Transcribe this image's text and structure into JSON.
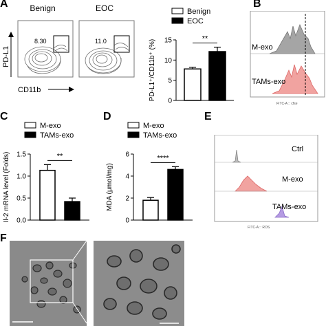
{
  "panels": {
    "A": {
      "label": "A",
      "flow": {
        "benign_title": "Benign",
        "eoc_title": "EOC",
        "benign_pct": "8.30",
        "eoc_pct": "11.0",
        "ylabel": "PD-L1",
        "xlabel": "CD11b"
      }
    },
    "B": {
      "label": "B",
      "row1": "M-exo",
      "row2": "TAMs-exo",
      "axis": "FITC-A :: cfse"
    },
    "C": {
      "label": "C",
      "sig": "**"
    },
    "D": {
      "label": "D",
      "sig": "****"
    },
    "E": {
      "label": "E",
      "rows": [
        "Ctrl",
        "M-exo",
        "TAMs-exo"
      ],
      "axis": "FITC-A :: ROS"
    },
    "F": {
      "label": "F"
    }
  },
  "chart_data": [
    {
      "type": "bar",
      "panel": "A",
      "ylabel": "PD-L1⁺/CD11b⁺ (%)",
      "categories": [
        "Benign",
        "EOC"
      ],
      "values": [
        7.8,
        12.1
      ],
      "errors": [
        0.4,
        1.1
      ],
      "colors": [
        "#ffffff",
        "#000000"
      ],
      "ylim": [
        0,
        15
      ],
      "yticks": [
        "0",
        "5",
        "10",
        "15"
      ],
      "legend": [
        "Benign",
        "EOC"
      ],
      "sig": "**"
    },
    {
      "type": "bar",
      "panel": "C",
      "ylabel": "Il-2 mRNA level (Folds)",
      "categories": [
        "M-exo",
        "TAMs-exo"
      ],
      "values": [
        1.13,
        0.42
      ],
      "errors": [
        0.13,
        0.08
      ],
      "colors": [
        "#ffffff",
        "#000000"
      ],
      "ylim": [
        0,
        1.5
      ],
      "yticks": [
        "0.0",
        "0.5",
        "1.0",
        "1.5"
      ],
      "legend": [
        "M-exo",
        "TAMs-exo"
      ],
      "sig": "**"
    },
    {
      "type": "bar",
      "panel": "D",
      "ylabel": "MDA (μmol/mg)",
      "categories": [
        "M-exo",
        "TAMs-exo"
      ],
      "values": [
        1.8,
        4.6
      ],
      "errors": [
        0.25,
        0.25
      ],
      "colors": [
        "#ffffff",
        "#000000"
      ],
      "ylim": [
        0,
        6
      ],
      "yticks": [
        "0",
        "2",
        "4",
        "6"
      ],
      "legend": [
        "M-exo",
        "TAMs-exo"
      ],
      "sig": "****"
    }
  ]
}
